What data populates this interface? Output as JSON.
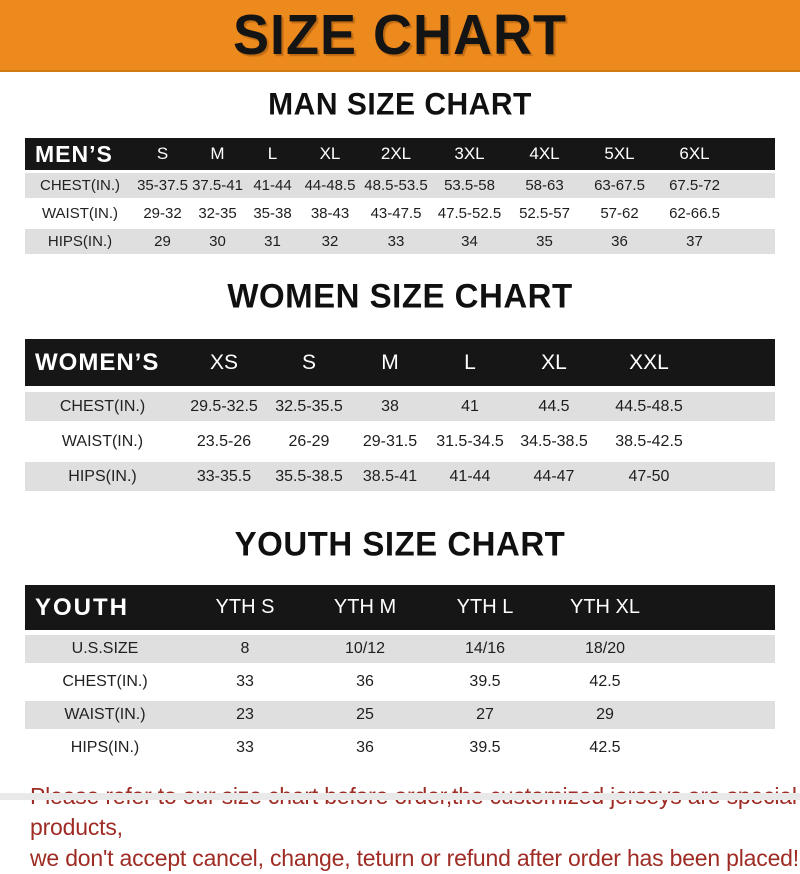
{
  "banner": {
    "title": "SIZE CHART",
    "bg_color": "#ED8A1E",
    "text_color": "#141414"
  },
  "sections": [
    {
      "id": "men",
      "title": "MAN SIZE CHART",
      "corner_label": "MEN’S",
      "columns": [
        "S",
        "M",
        "L",
        "XL",
        "2XL",
        "3XL",
        "4XL",
        "5XL",
        "6XL"
      ],
      "rows": [
        {
          "label": "CHEST(IN.)",
          "values": [
            "35-37.5",
            "37.5-41",
            "41-44",
            "44-48.5",
            "48.5-53.5",
            "53.5-58",
            "58-63",
            "63-67.5",
            "67.5-72"
          ]
        },
        {
          "label": "WAIST(IN.)",
          "values": [
            "29-32",
            "32-35",
            "35-38",
            "38-43",
            "43-47.5",
            "47.5-52.5",
            "52.5-57",
            "57-62",
            "62-66.5"
          ]
        },
        {
          "label": "HIPS(IN.)",
          "values": [
            "29",
            "30",
            "31",
            "32",
            "33",
            "34",
            "35",
            "36",
            "37"
          ]
        }
      ]
    },
    {
      "id": "women",
      "title": "WOMEN SIZE CHART",
      "corner_label": "WOMEN’S",
      "columns": [
        "XS",
        "S",
        "M",
        "L",
        "XL",
        "XXL"
      ],
      "rows": [
        {
          "label": "CHEST(IN.)",
          "values": [
            "29.5-32.5",
            "32.5-35.5",
            "38",
            "41",
            "44.5",
            "44.5-48.5"
          ]
        },
        {
          "label": "WAIST(IN.)",
          "values": [
            "23.5-26",
            "26-29",
            "29-31.5",
            "31.5-34.5",
            "34.5-38.5",
            "38.5-42.5"
          ]
        },
        {
          "label": "HIPS(IN.)",
          "values": [
            "33-35.5",
            "35.5-38.5",
            "38.5-41",
            "41-44",
            "44-47",
            "47-50"
          ]
        }
      ]
    },
    {
      "id": "youth",
      "title": "YOUTH SIZE CHART",
      "corner_label": "YOUTH",
      "columns": [
        "YTH S",
        "YTH M",
        "YTH L",
        "YTH XL"
      ],
      "rows": [
        {
          "label": "U.S.SIZE",
          "values": [
            "8",
            "10/12",
            "14/16",
            "18/20"
          ]
        },
        {
          "label": "CHEST(IN.)",
          "values": [
            "33",
            "36",
            "39.5",
            "42.5"
          ]
        },
        {
          "label": "WAIST(IN.)",
          "values": [
            "23",
            "25",
            "27",
            "29"
          ]
        },
        {
          "label": "HIPS(IN.)",
          "values": [
            "33",
            "36",
            "39.5",
            "42.5"
          ]
        }
      ]
    }
  ],
  "footer": {
    "line1": "Please refer to our size chart before order,the customized jerseys are special products,",
    "line2": "we don't accept cancel, change, teturn or refund after order has been placed!",
    "text_color": "#9E2B24"
  },
  "colors": {
    "header_bar": "#161616",
    "stripe_gray": "#DFDFDF",
    "banner_orange": "#ED8A1E"
  }
}
